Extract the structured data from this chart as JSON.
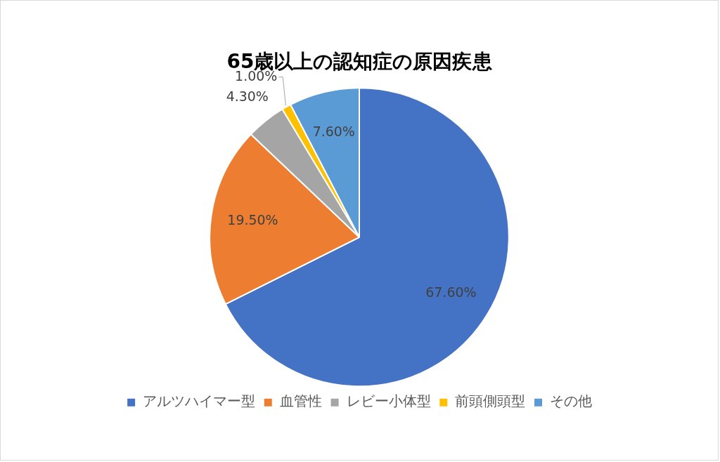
{
  "chart_data": {
    "type": "pie",
    "title": "65歳以上の認知症の原因疾患",
    "categories": [
      "アルツハイマー型",
      "血管性",
      "レビー小体型",
      "前頭側頭型",
      "その他"
    ],
    "values": [
      67.6,
      19.5,
      4.3,
      1.0,
      7.6
    ],
    "colors": [
      "#4472c4",
      "#ed7d31",
      "#a5a5a5",
      "#ffc000",
      "#5b9bd5"
    ],
    "value_labels": [
      "67.60%",
      "19.50%",
      "4.30%",
      "1.00%",
      "7.60%"
    ],
    "legend": "bottom"
  }
}
